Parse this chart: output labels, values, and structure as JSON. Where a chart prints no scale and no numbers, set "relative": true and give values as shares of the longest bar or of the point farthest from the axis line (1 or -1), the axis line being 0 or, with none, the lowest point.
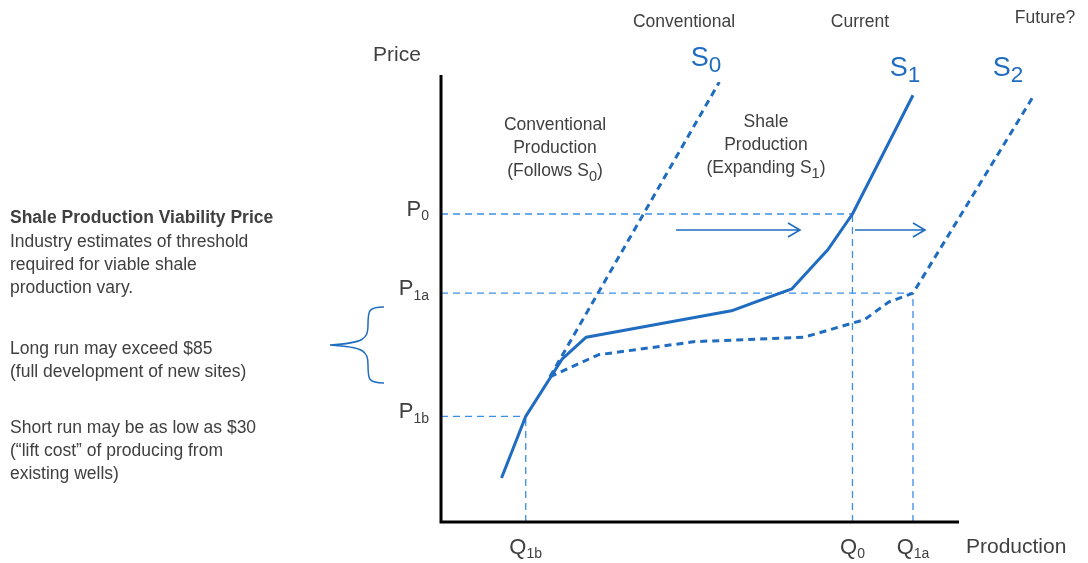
{
  "chart_data": {
    "type": "line",
    "xlabel": "Production",
    "ylabel": "Price",
    "relative": true,
    "marker": "none",
    "categories": [
      null,
      null,
      null,
      null,
      null,
      null,
      null,
      "Q$_{1b}$",
      null,
      null,
      null,
      null,
      null,
      null,
      null,
      null,
      null,
      null,
      null,
      null,
      null,
      null,
      null,
      null,
      null,
      null,
      null,
      null,
      null,
      null,
      null,
      null,
      null,
      null,
      "Q$_{0}$",
      null,
      null,
      null,
      null,
      "Q$_{1a}$",
      null,
      null,
      null,
      null,
      null,
      null,
      null,
      null,
      null,
      null
    ],
    "series": [
      {
        "name": "S$_{0}$",
        "color": "#1f6cc0",
        "line_style": "dashed",
        "values": [
          null,
          null,
          null,
          null,
          null,
          null,
          null,
          null,
          null,
          0.33,
          null,
          null,
          null,
          null,
          null,
          null,
          null,
          null,
          null,
          null,
          null,
          null,
          null,
          1.0,
          null,
          null,
          null,
          null,
          null,
          null,
          null,
          null,
          null,
          null,
          null,
          null,
          null,
          null,
          null,
          null,
          null,
          null,
          null,
          null,
          null,
          null,
          null,
          null,
          null,
          null
        ]
      },
      {
        "name": "S$_{1}$",
        "color": "#1f6cc0",
        "line_style": "solid",
        "values": [
          null,
          null,
          null,
          null,
          null,
          0.1,
          null,
          0.24,
          null,
          null,
          0.37,
          null,
          0.42,
          null,
          null,
          null,
          null,
          null,
          0.45,
          null,
          null,
          null,
          null,
          null,
          0.48,
          null,
          null,
          null,
          null,
          0.53,
          null,
          null,
          0.62,
          null,
          0.7,
          null,
          null,
          null,
          null,
          0.97,
          null,
          null,
          null,
          null,
          null,
          null,
          null,
          null,
          null,
          null
        ]
      },
      {
        "name": "S$_{2}$",
        "color": "#1f6cc0",
        "line_style": "dashed",
        "values": [
          null,
          null,
          null,
          null,
          null,
          null,
          null,
          null,
          null,
          0.33,
          null,
          null,
          null,
          0.38,
          null,
          null,
          null,
          null,
          null,
          null,
          null,
          0.41,
          null,
          null,
          null,
          null,
          null,
          null,
          null,
          null,
          0.42,
          null,
          null,
          null,
          null,
          0.46,
          null,
          0.5,
          null,
          0.52,
          null,
          null,
          null,
          null,
          null,
          null,
          null,
          null,
          null,
          0.97
        ]
      }
    ],
    "ref_lines": [
      {
        "axis": "y",
        "value": 0.7,
        "label": "P$_{0}$",
        "color": "#3b8ee8",
        "line_style": "dashed"
      },
      {
        "axis": "y",
        "value": 0.52,
        "label": "P$_{1a}$",
        "color": "#3b8ee8",
        "line_style": "dashed"
      },
      {
        "axis": "y",
        "value": 0.24,
        "label": "P$_{1b}$",
        "color": "#3b8ee8",
        "line_style": "dashed"
      },
      {
        "axis": "x",
        "value": "Q$_{0}$",
        "color": "#3b8ee8",
        "line_style": "dashed"
      },
      {
        "axis": "x",
        "value": "Q$_{1a}$",
        "color": "#3b8ee8",
        "line_style": "dashed"
      },
      {
        "axis": "x",
        "value": "Q$_{1b}$",
        "color": "#3b8ee8",
        "line_style": "dashed"
      }
    ],
    "annotations": [
      "Shale Production Viability Price",
      "Industry estimates of threshold\nrequired for viable shale\nproduction vary.",
      "Long run may exceed $85\n(full development of new sites)",
      "Short run may be as low as $30\n(“lift cost” of producing from\nexisting wells)",
      "Conventional",
      "Current",
      "Future?",
      "Conventional\nProduction\n(Follows S$_{0}$)",
      "Shale\nProduction\n(Expanding S$_{1}$)"
    ]
  }
}
